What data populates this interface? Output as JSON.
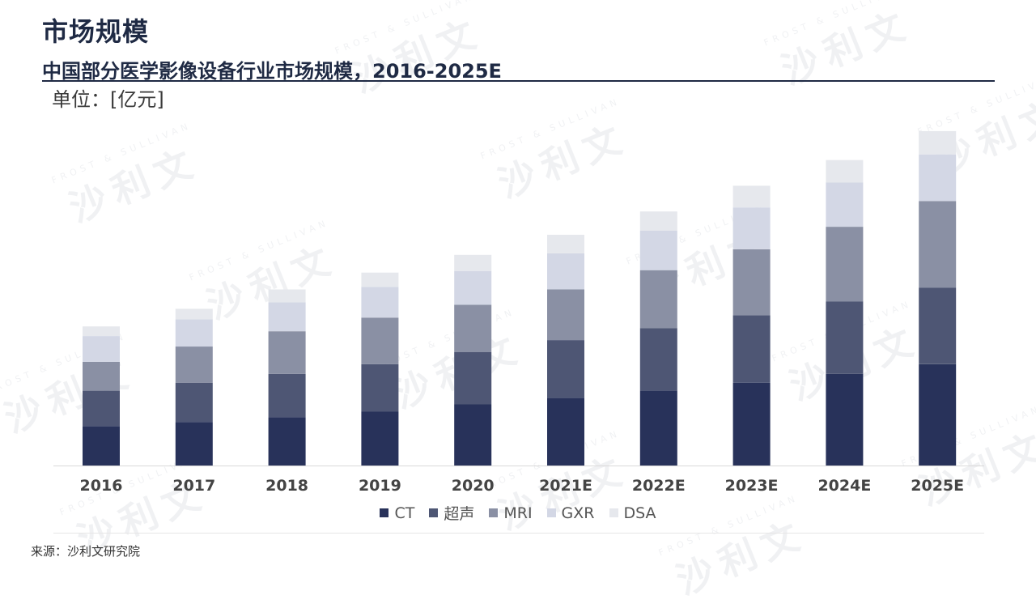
{
  "page": {
    "title": "市场规模",
    "chart_title": "中国部分医学影像设备行业市场规模，2016-2025E",
    "unit": "单位：[亿元]",
    "source": "来源：沙利文研究院",
    "watermark_cn": "沙利文",
    "watermark_en": "FROST & SULLIVAN"
  },
  "chart_data": {
    "type": "bar",
    "stacked": true,
    "title": "中国部分医学影像设备行业市场规模，2016-2025E",
    "ylabel": "单位：[亿元]",
    "categories": [
      "2016",
      "2017",
      "2018",
      "2019",
      "2020",
      "2021E",
      "2022E",
      "2023E",
      "2024E",
      "2025E"
    ],
    "series": [
      {
        "name": "CT",
        "color": "#28325a",
        "values": [
          49,
          54,
          60,
          67,
          76,
          84,
          93,
          103,
          114,
          126
        ]
      },
      {
        "name": "超声",
        "color": "#4e5674",
        "values": [
          44,
          49,
          54,
          59,
          65,
          72,
          78,
          84,
          90,
          95
        ]
      },
      {
        "name": "MRI",
        "color": "#8a90a4",
        "values": [
          36,
          45,
          53,
          58,
          59,
          63,
          72,
          82,
          93,
          108
        ]
      },
      {
        "name": "GXR",
        "color": "#d3d7e5",
        "values": [
          32,
          34,
          36,
          38,
          42,
          45,
          49,
          52,
          55,
          58
        ]
      },
      {
        "name": "DSA",
        "color": "#e6e8ed",
        "values": [
          12,
          13,
          16,
          18,
          20,
          23,
          24,
          27,
          28,
          29
        ]
      }
    ],
    "ylim": [
      0,
      430
    ],
    "grid": false,
    "legend": "bottom"
  }
}
